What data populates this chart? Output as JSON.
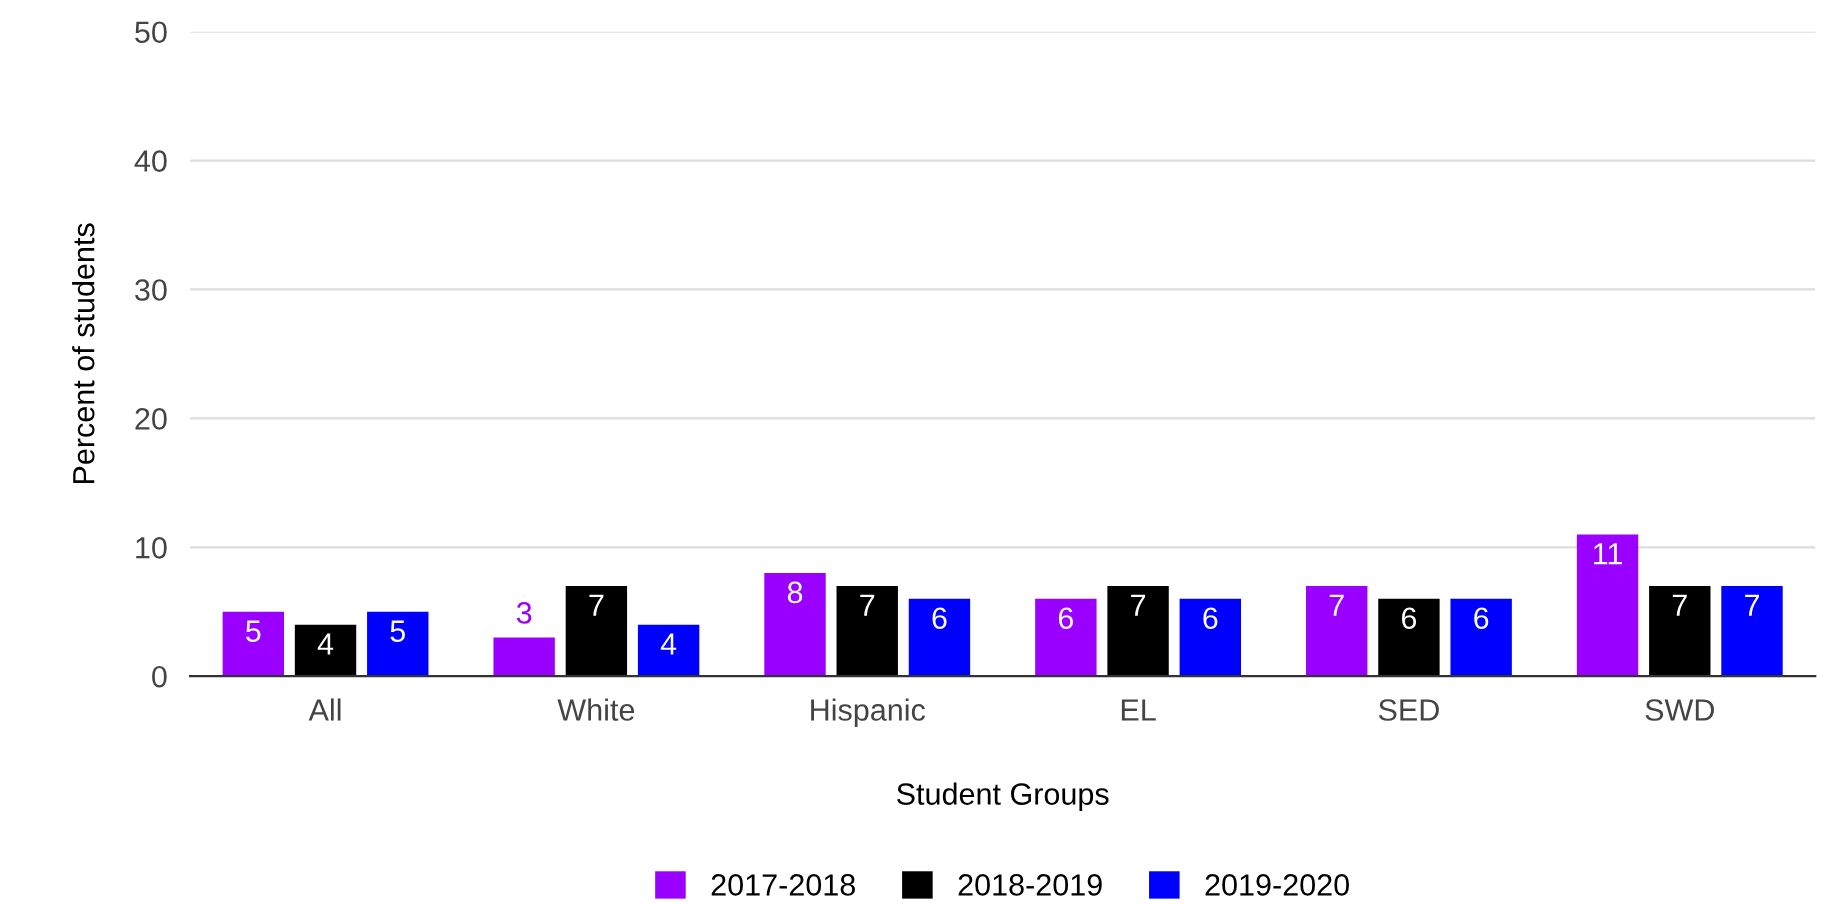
{
  "chart_data": {
    "type": "bar",
    "xlabel": "Student Groups",
    "ylabel": "Percent of students",
    "categories": [
      "All",
      "White",
      "Hispanic",
      "EL",
      "SED",
      "SWD"
    ],
    "series": [
      {
        "name": "2017-2018",
        "color": "#9900ff",
        "values": [
          5,
          3,
          8,
          6,
          7,
          11
        ]
      },
      {
        "name": "2018-2019",
        "color": "#000000",
        "values": [
          4,
          7,
          7,
          7,
          6,
          7
        ]
      },
      {
        "name": "2019-2020",
        "color": "#0000ff",
        "values": [
          5,
          4,
          6,
          6,
          6,
          7
        ]
      }
    ],
    "ylim": [
      0,
      50
    ],
    "yticks": [
      0,
      10,
      20,
      30,
      40,
      50
    ],
    "grid": "y",
    "legend": "bottom",
    "data_labels": true
  }
}
